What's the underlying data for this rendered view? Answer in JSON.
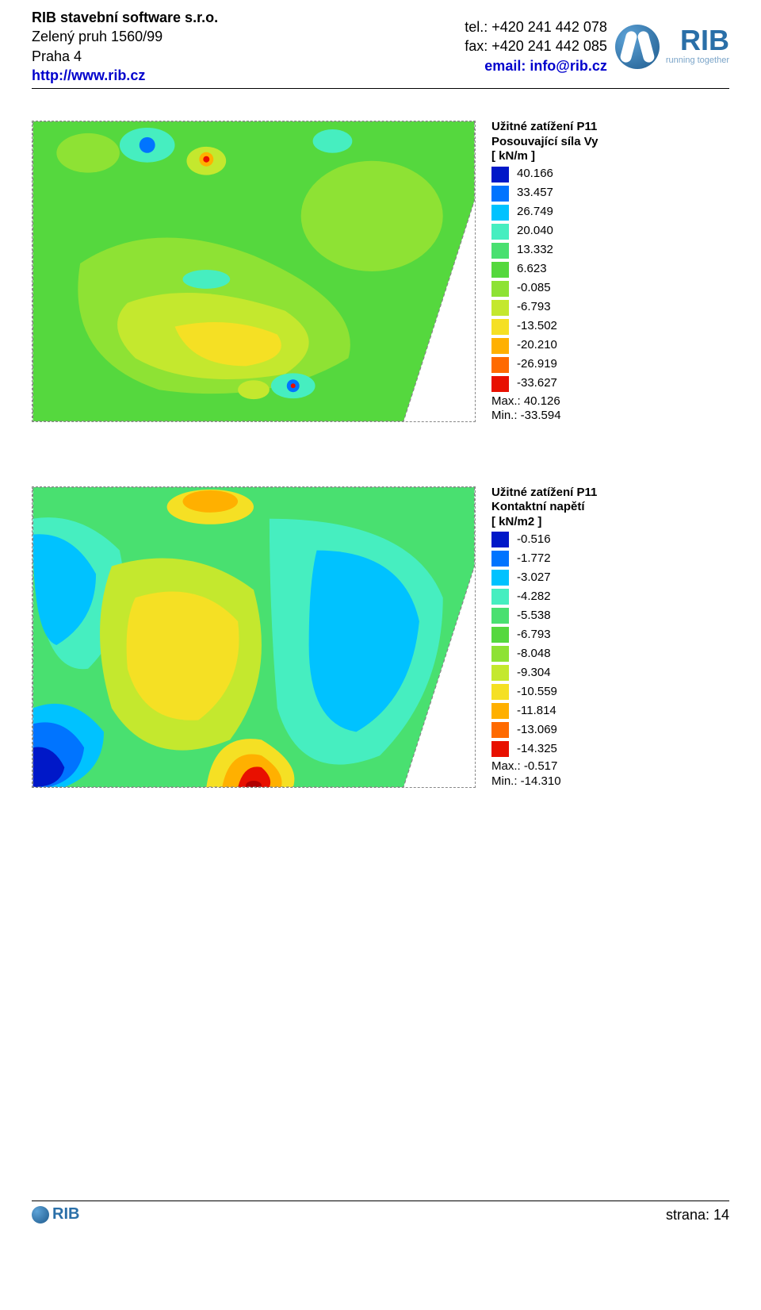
{
  "header": {
    "company": "RIB stavební software s.r.o.",
    "address1": "Zelený pruh 1560/99",
    "address2": "Praha 4",
    "url": "http://www.rib.cz",
    "tel": "tel.: +420 241 442 078",
    "fax": "fax: +420 241 442 085",
    "email": "email: info@rib.cz",
    "logo_text": "RIB",
    "logo_sub": "running together"
  },
  "plot1": {
    "title1": "Užitné zatížení P11",
    "title2": "Posouvající síla Vy",
    "unit": "[ kN/m ]",
    "scale": [
      {
        "color": "#0018c8",
        "label": "40.166"
      },
      {
        "color": "#0074ff",
        "label": "33.457"
      },
      {
        "color": "#00c2ff",
        "label": "26.749"
      },
      {
        "color": "#46eec0",
        "label": "20.040"
      },
      {
        "color": "#49e070",
        "label": "13.332"
      },
      {
        "color": "#55d83e",
        "label": "6.623"
      },
      {
        "color": "#8ee234",
        "label": "-0.085"
      },
      {
        "color": "#c4e82e",
        "label": "-6.793"
      },
      {
        "color": "#f5e024",
        "label": "-13.502"
      },
      {
        "color": "#ffb000",
        "label": "-20.210"
      },
      {
        "color": "#ff6a00",
        "label": "-26.919"
      },
      {
        "color": "#e81000",
        "label": "-33.627"
      }
    ],
    "max": "Max.:   40.126",
    "min": "Min.:  -33.594",
    "contour_colors": {
      "bg": "#55d83e",
      "mid": "#8ee234",
      "warm": "#c4e82e",
      "hot": "#f5e024",
      "orange": "#ffb000",
      "red": "#e81000",
      "cool": "#46eec0",
      "blue": "#0074ff",
      "deepblue": "#0018c8"
    }
  },
  "plot2": {
    "title1": "Užitné zatížení P11",
    "title2": "Kontaktní napětí",
    "unit": "[ kN/m2 ]",
    "scale": [
      {
        "color": "#0018c8",
        "label": "-0.516"
      },
      {
        "color": "#0074ff",
        "label": "-1.772"
      },
      {
        "color": "#00c2ff",
        "label": "-3.027"
      },
      {
        "color": "#46eec0",
        "label": "-4.282"
      },
      {
        "color": "#49e070",
        "label": "-5.538"
      },
      {
        "color": "#55d83e",
        "label": "-6.793"
      },
      {
        "color": "#8ee234",
        "label": "-8.048"
      },
      {
        "color": "#c4e82e",
        "label": "-9.304"
      },
      {
        "color": "#f5e024",
        "label": "-10.559"
      },
      {
        "color": "#ffb000",
        "label": "-11.814"
      },
      {
        "color": "#ff6a00",
        "label": "-13.069"
      },
      {
        "color": "#e81000",
        "label": "-14.325"
      }
    ],
    "max": "Max.:   -0.517",
    "min": "Min.:  -14.310",
    "contour_colors": {
      "bg": "#49e070",
      "cyan": "#46eec0",
      "ltblue": "#00c2ff",
      "blue": "#0074ff",
      "deepblue": "#0018c8",
      "yel": "#c4e82e",
      "yellow": "#f5e024",
      "orange": "#ffb000",
      "red": "#e81000",
      "deepred": "#b00000"
    }
  },
  "footer": {
    "logo": "RIB",
    "page": "strana: 14"
  }
}
